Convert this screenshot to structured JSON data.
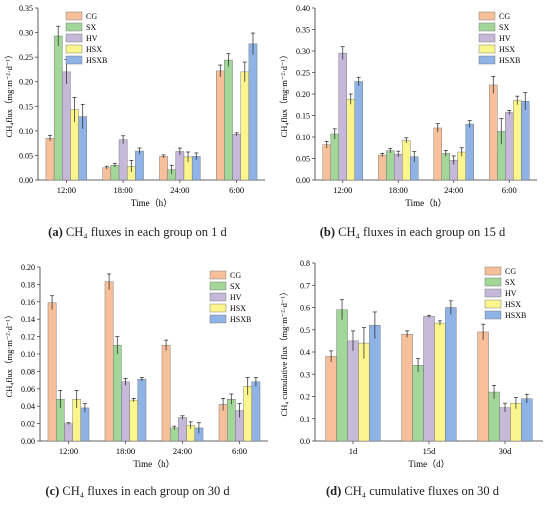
{
  "colors": {
    "CG": "#f7c09a",
    "SX": "#a3d79a",
    "HV": "#c6b8d9",
    "HSX": "#fbf58d",
    "HSXB": "#8fb3e6"
  },
  "chart_data": [
    {
      "type": "bar",
      "panel_label": "(a)",
      "caption": "CH₄ fluxes in each group on 1 d",
      "xlabel": "Time（h）",
      "ylabel": "CH₄flux（mg·m⁻²·d⁻¹）",
      "categories": [
        "12:00",
        "18:00",
        "24:00",
        "6:00"
      ],
      "ylim": [
        0,
        0.35
      ],
      "yticks": [
        "0.00",
        "0.05",
        "0.10",
        "0.15",
        "0.20",
        "0.25",
        "0.30",
        "0.35"
      ],
      "legend_position": "top-left",
      "series": [
        {
          "name": "CG",
          "values": [
            0.085,
            0.025,
            0.048,
            0.222
          ],
          "errors": [
            0.006,
            0.003,
            0.003,
            0.012
          ]
        },
        {
          "name": "SX",
          "values": [
            0.293,
            0.03,
            0.021,
            0.244
          ],
          "errors": [
            0.02,
            0.004,
            0.009,
            0.013
          ]
        },
        {
          "name": "HV",
          "values": [
            0.22,
            0.082,
            0.058,
            0.093
          ],
          "errors": [
            0.025,
            0.008,
            0.007,
            0.003
          ]
        },
        {
          "name": "HSX",
          "values": [
            0.143,
            0.028,
            0.047,
            0.22
          ],
          "errors": [
            0.025,
            0.012,
            0.01,
            0.02
          ]
        },
        {
          "name": "HSXB",
          "values": [
            0.129,
            0.059,
            0.048,
            0.277
          ],
          "errors": [
            0.025,
            0.006,
            0.007,
            0.022
          ]
        }
      ]
    },
    {
      "type": "bar",
      "panel_label": "(b)",
      "caption": "CH₄ fluxes in each group on 15 d",
      "xlabel": "Time（h）",
      "ylabel": "CH₄flux（mg·m⁻²·d⁻¹）",
      "categories": [
        "12:00",
        "18:00",
        "24:00",
        "6:00"
      ],
      "ylim": [
        0,
        0.4
      ],
      "yticks": [
        "0.00",
        "0.05",
        "0.10",
        "0.15",
        "0.20",
        "0.25",
        "0.30",
        "0.35",
        "0.40"
      ],
      "legend_position": "top-right",
      "series": [
        {
          "name": "CG",
          "values": [
            0.082,
            0.058,
            0.121,
            0.221
          ],
          "errors": [
            0.008,
            0.004,
            0.01,
            0.02
          ]
        },
        {
          "name": "SX",
          "values": [
            0.107,
            0.068,
            0.062,
            0.113
          ],
          "errors": [
            0.012,
            0.005,
            0.007,
            0.03
          ]
        },
        {
          "name": "HV",
          "values": [
            0.295,
            0.06,
            0.046,
            0.157
          ],
          "errors": [
            0.015,
            0.007,
            0.01,
            0.005
          ]
        },
        {
          "name": "HSX",
          "values": [
            0.188,
            0.092,
            0.065,
            0.185
          ],
          "errors": [
            0.012,
            0.006,
            0.01,
            0.01
          ]
        },
        {
          "name": "HSXB",
          "values": [
            0.229,
            0.054,
            0.13,
            0.183
          ],
          "errors": [
            0.01,
            0.012,
            0.008,
            0.02
          ]
        }
      ]
    },
    {
      "type": "bar",
      "panel_label": "(c)",
      "caption": "CH₄ fluxes in each group on 30 d",
      "xlabel": "Time（h）",
      "ylabel": "CH₄flux（mg·m⁻²·d⁻¹）",
      "categories": [
        "12:00",
        "18:00",
        "24:00",
        "6:00"
      ],
      "ylim": [
        0,
        0.2
      ],
      "yticks": [
        "0.00",
        "0.02",
        "0.04",
        "0.06",
        "0.08",
        "0.10",
        "0.12",
        "0.14",
        "0.16",
        "0.18",
        "0.20"
      ],
      "legend_position": "top-right",
      "series": [
        {
          "name": "CG",
          "values": [
            0.159,
            0.183,
            0.11,
            0.042
          ],
          "errors": [
            0.008,
            0.009,
            0.006,
            0.007
          ]
        },
        {
          "name": "SX",
          "values": [
            0.048,
            0.11,
            0.015,
            0.048
          ],
          "errors": [
            0.01,
            0.01,
            0.002,
            0.006
          ]
        },
        {
          "name": "HV",
          "values": [
            0.02,
            0.068,
            0.027,
            0.035
          ],
          "errors": [
            0.001,
            0.004,
            0.002,
            0.008
          ]
        },
        {
          "name": "HSX",
          "values": [
            0.048,
            0.047,
            0.018,
            0.063
          ],
          "errors": [
            0.01,
            0.002,
            0.004,
            0.01
          ]
        },
        {
          "name": "HSXB",
          "values": [
            0.038,
            0.071,
            0.015,
            0.068
          ],
          "errors": [
            0.005,
            0.002,
            0.006,
            0.005
          ]
        }
      ]
    },
    {
      "type": "bar",
      "panel_label": "(d)",
      "caption": "CH₄ cumulative fluxes on 30 d",
      "xlabel": "Time（d）",
      "ylabel": "CH₄ cumulative flux（mg·m⁻²·d⁻¹）",
      "categories": [
        "1d",
        "15d",
        "30d"
      ],
      "ylim": [
        0,
        0.8
      ],
      "yticks": [
        "0.0",
        "0.1",
        "0.2",
        "0.3",
        "0.4",
        "0.5",
        "0.6",
        "0.7",
        "0.8"
      ],
      "legend_position": "top-right",
      "series": [
        {
          "name": "CG",
          "values": [
            0.38,
            0.48,
            0.49
          ],
          "errors": [
            0.025,
            0.015,
            0.035
          ]
        },
        {
          "name": "SX",
          "values": [
            0.59,
            0.34,
            0.22
          ],
          "errors": [
            0.045,
            0.03,
            0.03
          ]
        },
        {
          "name": "HV",
          "values": [
            0.45,
            0.56,
            0.15
          ],
          "errors": [
            0.045,
            0.005,
            0.02
          ]
        },
        {
          "name": "HSX",
          "values": [
            0.44,
            0.53,
            0.17
          ],
          "errors": [
            0.07,
            0.01,
            0.025
          ]
        },
        {
          "name": "HSXB",
          "values": [
            0.52,
            0.6,
            0.19
          ],
          "errors": [
            0.06,
            0.03,
            0.02
          ]
        }
      ]
    }
  ]
}
